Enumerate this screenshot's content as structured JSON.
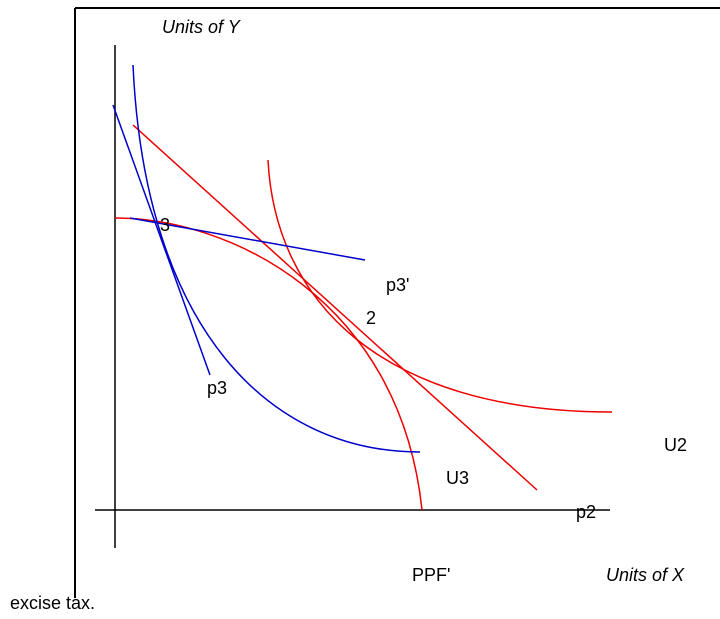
{
  "axes": {
    "y_label": "Units of Y",
    "x_label": "Units of X"
  },
  "labels": {
    "point_3": "3",
    "p3_prime": "p3'",
    "point_2": "2",
    "p3": "p3",
    "u2": "U2",
    "u3": "U3",
    "p2": "p2",
    "ppf_prime": "PPF'"
  },
  "caption": "excise tax."
}
